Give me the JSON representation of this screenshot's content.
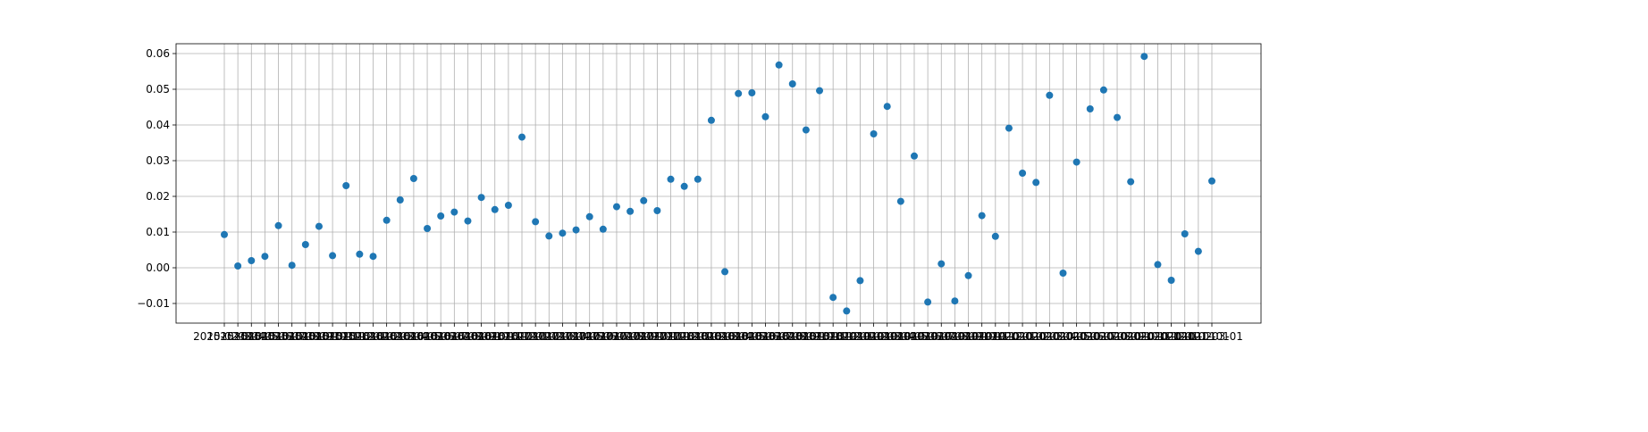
{
  "chart_data": {
    "type": "scatter",
    "color": "#1f77b4",
    "grid": true,
    "categories": [
      "2015-02-01",
      "2015-03-01",
      "2015-04-01",
      "2015-05-01",
      "2015-06-01",
      "2015-07-01",
      "2015-08-01",
      "2015-09-01",
      "2015-10-01",
      "2015-11-01",
      "2015-12-01",
      "2016-01-01",
      "2016-02-01",
      "2016-03-01",
      "2016-04-01",
      "2016-05-01",
      "2016-06-01",
      "2016-07-01",
      "2016-08-01",
      "2016-09-01",
      "2016-10-01",
      "2016-11-01",
      "2016-12-01",
      "2017-01-01",
      "2017-02-01",
      "2017-03-01",
      "2017-04-01",
      "2017-05-01",
      "2017-06-01",
      "2017-07-01",
      "2017-08-01",
      "2017-09-01",
      "2017-10-01",
      "2017-11-01",
      "2017-12-01",
      "2018-01-01",
      "2018-02-01",
      "2018-03-01",
      "2018-04-01",
      "2018-05-01",
      "2018-06-01",
      "2018-07-01",
      "2018-08-01",
      "2018-09-01",
      "2018-10-01",
      "2018-11-01",
      "2018-12-01",
      "2019-01-01",
      "2019-02-01",
      "2019-03-01",
      "2019-04-01",
      "2019-05-01",
      "2019-06-01",
      "2019-07-01",
      "2019-08-01",
      "2019-09-01",
      "2019-10-01",
      "2019-11-01",
      "2019-12-01",
      "2020-01-01",
      "2020-02-01",
      "2020-03-01",
      "2020-04-01",
      "2020-05-01",
      "2020-06-01",
      "2020-07-01",
      "2020-08-01",
      "2020-09-01",
      "2020-10-01",
      "2020-11-01",
      "2020-12-01",
      "2021-01-01",
      "2021-02-01",
      "2021-03-01"
    ],
    "values": [
      0.0093,
      0.0005,
      0.002,
      0.0032,
      0.0118,
      0.0007,
      0.0065,
      0.0116,
      0.0034,
      0.023,
      0.0038,
      0.0032,
      0.0133,
      0.019,
      0.025,
      0.011,
      0.0145,
      0.0156,
      0.0131,
      0.0197,
      0.0163,
      0.0175,
      0.0366,
      0.0129,
      0.0089,
      0.0097,
      0.0106,
      0.0143,
      0.0108,
      0.0171,
      0.0158,
      0.0188,
      0.016,
      0.0248,
      0.0228,
      0.0248,
      0.0413,
      -0.0011,
      0.0488,
      0.049,
      0.0423,
      0.0568,
      0.0515,
      0.0386,
      0.0496,
      -0.0083,
      -0.0121,
      -0.0036,
      0.0375,
      0.0452,
      0.0186,
      0.0313,
      -0.0096,
      0.0011,
      -0.0093,
      -0.0022,
      0.0146,
      0.0088,
      0.0391,
      0.0265,
      0.0239,
      0.0483,
      -0.0015,
      0.0296,
      0.0445,
      0.0498,
      0.0421,
      0.0241,
      0.0592,
      0.0009,
      -0.0035,
      0.0095,
      0.0046,
      0.0243
    ],
    "ylim": [
      -0.0155,
      0.06275
    ],
    "yticks": [
      {
        "value": -0.01,
        "label": "−0.01"
      },
      {
        "value": 0,
        "label": "0.00"
      },
      0.01,
      0.02,
      0.03,
      0.04,
      0.05,
      0.06
    ]
  }
}
